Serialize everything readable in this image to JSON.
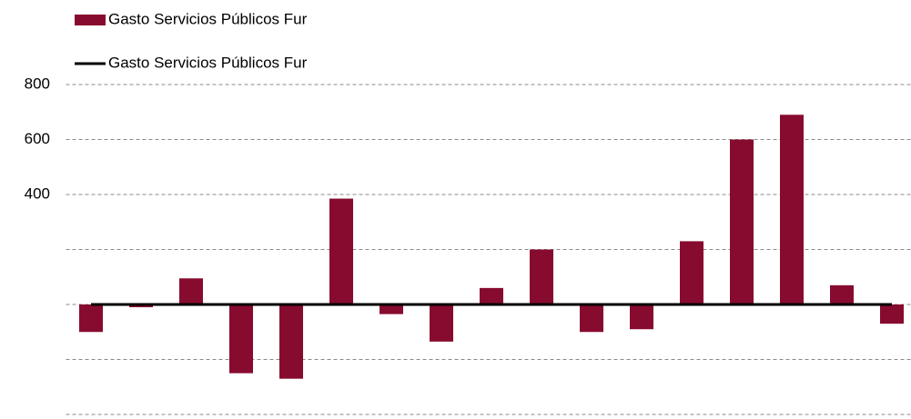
{
  "chart_data": {
    "type": "bar",
    "categories": [
      null,
      null,
      null,
      null,
      null,
      null,
      null,
      null,
      null,
      null,
      null,
      null,
      null,
      null,
      null,
      null,
      null
    ],
    "series": [
      {
        "name": "Gasto Servicios Públicos Fur",
        "type": "bar",
        "color": "#870b2e",
        "values": [
          -100,
          -10,
          95,
          -250,
          -270,
          385,
          -35,
          -135,
          60,
          200,
          -100,
          -90,
          230,
          600,
          690,
          70,
          -70
        ]
      },
      {
        "name": "Gasto Servicios Públicos Fur",
        "type": "line",
        "color": "#000000",
        "values": [
          0,
          0,
          0,
          0,
          0,
          0,
          0,
          0,
          0,
          0,
          0,
          0,
          0,
          0,
          0,
          0,
          0
        ]
      }
    ],
    "ylim": [
      -400,
      800
    ],
    "yticks": [
      400,
      600,
      800
    ],
    "ygrid": [
      -400,
      -200,
      0,
      200,
      400,
      600,
      800
    ],
    "grid": true,
    "legend": "top-left"
  }
}
